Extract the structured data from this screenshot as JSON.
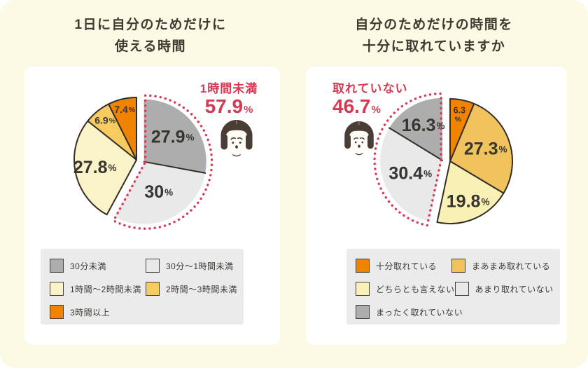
{
  "page": {
    "background_color": "#FCF9E4",
    "card_color": "#FFFFFF",
    "accent_red": "#D53A52",
    "text_dark": "#3C3831",
    "legend_background": "#EBEBEB",
    "pie_outline_color": "#332E28"
  },
  "icons": {
    "woman_face": "worried-woman-face-icon"
  },
  "chart_data": [
    {
      "type": "pie",
      "title": "1日に自分のためだけに使える時間",
      "title_lines": [
        "1日に自分のためだけに",
        "使える時間"
      ],
      "labels": [
        "30分未満",
        "30分〜1時間未満",
        "1時間〜2時間未満",
        "2時間〜3時間未満",
        "3時間以上"
      ],
      "values": [
        27.9,
        30,
        27.8,
        6.9,
        7.4
      ],
      "display_values": [
        "27.9",
        "30",
        "27.8",
        "6.9",
        "7.4"
      ],
      "value_suffix": "%",
      "colors": [
        "#ADADAD",
        "#E9E9E9",
        "#FAF3C8",
        "#F7CB5F",
        "#F08300"
      ],
      "clockwise_from_top": true,
      "exploded_indices": [
        0,
        1
      ],
      "label_radius": [
        0.6,
        0.55,
        0.68,
        0.8,
        0.82
      ],
      "stacked_label_index": -1,
      "legend_position": "below",
      "callout": {
        "label": "1時間未満",
        "value": "57.9",
        "unit": "%"
      }
    },
    {
      "type": "pie",
      "title": "自分のためだけの時間を十分に取れていますか",
      "title_lines": [
        "自分のためだけの時間を",
        "十分に取れていますか"
      ],
      "labels": [
        "十分取れている",
        "まあまあ取れている",
        "どちらとも言えない",
        "あまり取れていない",
        "まったく取れていない"
      ],
      "values": [
        6.3,
        27.3,
        19.8,
        30.4,
        16.3
      ],
      "display_values": [
        "6.3",
        "27.3",
        "19.8",
        "30.4",
        "16.3"
      ],
      "value_suffix": "%",
      "colors": [
        "#F08300",
        "#F0C35C",
        "#F8F0B4",
        "#E9E9E9",
        "#ADADAD"
      ],
      "clockwise_from_top": true,
      "exploded_indices": [
        3,
        4
      ],
      "label_radius": [
        0.76,
        0.6,
        0.72,
        0.56,
        0.63
      ],
      "stacked_label_index": 0,
      "legend_position": "below",
      "callout": {
        "label": "取れていない",
        "value": "46.7",
        "unit": "%"
      }
    }
  ]
}
